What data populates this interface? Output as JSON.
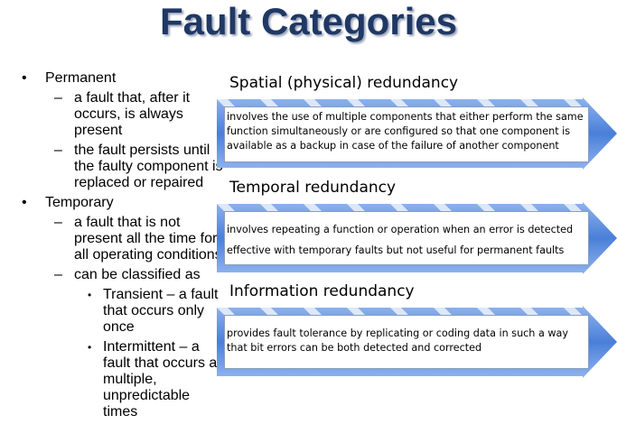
{
  "title": "Fault Categories",
  "left": {
    "permanent": "Permanent",
    "permanent_items": [
      [
        "a fault that, after it",
        "occurs, is always",
        "present"
      ],
      [
        "the fault persists until",
        "the faulty component is",
        "replaced or repaired"
      ]
    ],
    "temporary": "Temporary",
    "temporary_items": [
      [
        "a fault that is not",
        "present all the time for",
        "all operating conditions"
      ],
      [
        "can be classified as"
      ]
    ],
    "sub_items": [
      [
        "Transient – a fault",
        "that occurs only",
        "once"
      ],
      [
        "Intermittent – a",
        "fault that occurs at",
        "multiple,",
        "unpredictable",
        "times"
      ]
    ],
    "bullet": "•",
    "dash": "–"
  },
  "right": {
    "spatial_heading": "Spatial (physical) redundancy",
    "spatial_lines": [
      "involves the use of multiple components that either perform the same",
      "function simultaneously or are configured so that one component is",
      "available as a backup in case of the failure of another component"
    ],
    "temporal_heading": "Temporal redundancy",
    "temporal_lines": [
      "involves repeating a function or operation when an error is detected",
      "effective with temporary faults but not useful for permanent faults"
    ],
    "information_heading": "Information redundancy",
    "information_lines": [
      "provides fault tolerance by replicating or coding data in such a way",
      "that bit errors can be both detected and corrected"
    ]
  },
  "colors": {
    "title": "#1f3864",
    "arrow": "#5b8fe0",
    "box_border": "#8a9ebf"
  }
}
